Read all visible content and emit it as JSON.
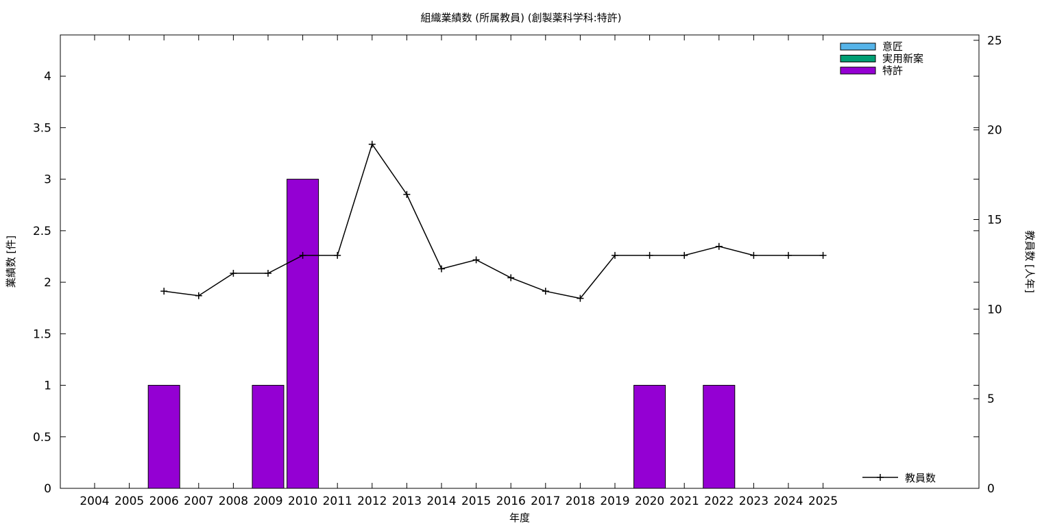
{
  "chart_data": {
    "type": "bar",
    "title": "組織業績数 (所属教員) (創製薬科学科:特許)",
    "xlabel": "年度",
    "ylabel": "業績数 [件]",
    "y2label": "教員数 [人年]",
    "categories": [
      "2004",
      "2005",
      "2006",
      "2007",
      "2008",
      "2009",
      "2010",
      "2011",
      "2012",
      "2013",
      "2014",
      "2015",
      "2016",
      "2017",
      "2018",
      "2019",
      "2020",
      "2021",
      "2022",
      "2023",
      "2024",
      "2025"
    ],
    "ylim": [
      0,
      4.4
    ],
    "yticks": [
      "0",
      "0.5",
      "1",
      "1.5",
      "2",
      "2.5",
      "3",
      "3.5",
      "4"
    ],
    "y2lim": [
      0,
      25.3
    ],
    "y2ticks": [
      "0",
      "5",
      "10",
      "15",
      "20",
      "25"
    ],
    "grid": false,
    "legend_position": "top-right",
    "bar_series": [
      {
        "name": "意匠",
        "color": "#56b4e9",
        "values": [
          0,
          0,
          0,
          0,
          0,
          0,
          0,
          0,
          0,
          0,
          0,
          0,
          0,
          0,
          0,
          0,
          0,
          0,
          0,
          0,
          0,
          0
        ]
      },
      {
        "name": "実用新案",
        "color": "#009e73",
        "values": [
          0,
          0,
          0,
          0,
          0,
          0,
          0,
          0,
          0,
          0,
          0,
          0,
          0,
          0,
          0,
          0,
          0,
          0,
          0,
          0,
          0,
          0
        ]
      },
      {
        "name": "特許",
        "color": "#9400d3",
        "values": [
          0,
          0,
          1,
          0,
          0,
          1,
          3,
          0,
          0,
          0,
          0,
          0,
          0,
          0,
          0,
          0,
          1,
          0,
          1,
          0,
          0,
          0
        ]
      }
    ],
    "line_series": {
      "name": "教員数",
      "color": "#000000",
      "legend_position": "bottom-right",
      "x": [
        "2006",
        "2007",
        "2008",
        "2009",
        "2010",
        "2011",
        "2012",
        "2013",
        "2014",
        "2015",
        "2016",
        "2017",
        "2018",
        "2019",
        "2020",
        "2021",
        "2022",
        "2023",
        "2024",
        "2025"
      ],
      "values": [
        11.0,
        10.75,
        12.0,
        12.0,
        13.0,
        13.0,
        19.2,
        16.4,
        12.25,
        12.75,
        11.75,
        11.0,
        10.6,
        13.0,
        13.0,
        13.0,
        13.5,
        13.0,
        13.0,
        13.0
      ]
    }
  }
}
